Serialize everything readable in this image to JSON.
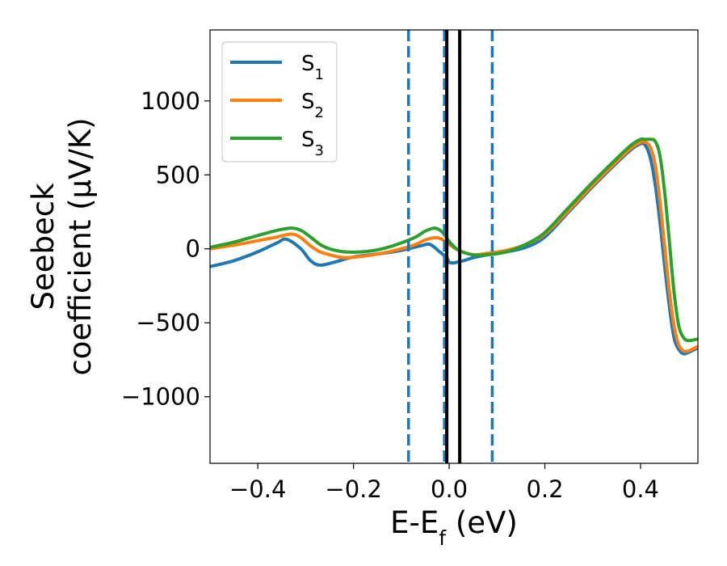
{
  "chart_data": {
    "type": "line",
    "xlabel": "E-E_f (eV)",
    "ylabel_lines": [
      "Seebeck",
      "coefficient  (μV/K)"
    ],
    "xlim": [
      -0.5,
      0.52
    ],
    "ylim": [
      -1450,
      1480
    ],
    "xticks": [
      -0.4,
      -0.2,
      0.0,
      0.2,
      0.4
    ],
    "xtick_labels": [
      "−0.4",
      "−0.2",
      "0.0",
      "0.2",
      "0.4"
    ],
    "yticks": [
      -1000,
      -500,
      0,
      500,
      1000
    ],
    "ytick_labels": [
      "−1000",
      "−500",
      "0",
      "500",
      "1000"
    ],
    "grid": false,
    "legend_position": "top-left",
    "series": [
      {
        "name": "S_1",
        "color": "#1f77b4",
        "x": [
          -0.5,
          -0.45,
          -0.4,
          -0.36,
          -0.34,
          -0.31,
          -0.29,
          -0.27,
          -0.24,
          -0.2,
          -0.15,
          -0.1,
          -0.06,
          -0.04,
          -0.02,
          -0.005,
          0.0,
          0.01,
          0.03,
          0.05,
          0.08,
          0.12,
          0.16,
          0.2,
          0.25,
          0.3,
          0.35,
          0.38,
          0.4,
          0.41,
          0.42,
          0.43,
          0.44,
          0.45,
          0.46,
          0.47,
          0.48,
          0.49,
          0.5,
          0.52
        ],
        "y": [
          -120,
          -80,
          -20,
          40,
          65,
          0,
          -80,
          -110,
          -90,
          -55,
          -35,
          -10,
          20,
          30,
          -20,
          -60,
          -90,
          -95,
          -80,
          -60,
          -40,
          -20,
          10,
          80,
          250,
          420,
          580,
          670,
          710,
          700,
          620,
          450,
          200,
          -100,
          -380,
          -600,
          -680,
          -710,
          -700,
          -670
        ]
      },
      {
        "name": "S_2",
        "color": "#ff7f0e",
        "x": [
          -0.5,
          -0.45,
          -0.4,
          -0.36,
          -0.33,
          -0.31,
          -0.29,
          -0.27,
          -0.25,
          -0.22,
          -0.18,
          -0.14,
          -0.1,
          -0.07,
          -0.05,
          -0.03,
          -0.015,
          0.0,
          0.02,
          0.05,
          0.08,
          0.12,
          0.16,
          0.2,
          0.25,
          0.3,
          0.35,
          0.38,
          0.4,
          0.41,
          0.42,
          0.43,
          0.44,
          0.45,
          0.46,
          0.47,
          0.48,
          0.49,
          0.5,
          0.52
        ],
        "y": [
          0,
          25,
          55,
          80,
          100,
          75,
          20,
          -20,
          -40,
          -60,
          -50,
          -30,
          0,
          30,
          60,
          75,
          65,
          30,
          -10,
          -40,
          -30,
          -10,
          30,
          100,
          260,
          430,
          590,
          680,
          720,
          720,
          690,
          580,
          340,
          30,
          -280,
          -520,
          -650,
          -690,
          -690,
          -660
        ]
      },
      {
        "name": "S_3",
        "color": "#2ca02c",
        "x": [
          -0.5,
          -0.45,
          -0.4,
          -0.36,
          -0.33,
          -0.31,
          -0.29,
          -0.27,
          -0.25,
          -0.22,
          -0.18,
          -0.14,
          -0.1,
          -0.07,
          -0.05,
          -0.03,
          -0.015,
          0.0,
          0.02,
          0.05,
          0.08,
          0.12,
          0.16,
          0.2,
          0.25,
          0.3,
          0.35,
          0.38,
          0.4,
          0.41,
          0.42,
          0.43,
          0.44,
          0.45,
          0.46,
          0.47,
          0.48,
          0.49,
          0.5,
          0.52
        ],
        "y": [
          10,
          45,
          90,
          125,
          140,
          125,
          80,
          30,
          0,
          -20,
          -20,
          0,
          40,
          80,
          120,
          140,
          115,
          50,
          -10,
          -40,
          -40,
          -20,
          30,
          110,
          280,
          450,
          610,
          700,
          740,
          740,
          740,
          730,
          640,
          400,
          60,
          -290,
          -520,
          -600,
          -620,
          -610
        ]
      }
    ],
    "vertical_lines": [
      {
        "x": -0.085,
        "style": "dashed",
        "color": "#1f77b4"
      },
      {
        "x": -0.01,
        "style": "dashed",
        "color": "#1f77b4"
      },
      {
        "x": 0.09,
        "style": "dashed",
        "color": "#1f77b4"
      },
      {
        "x": -0.005,
        "style": "solid",
        "color": "#000000"
      },
      {
        "x": 0.022,
        "style": "solid",
        "color": "#000000"
      }
    ]
  }
}
